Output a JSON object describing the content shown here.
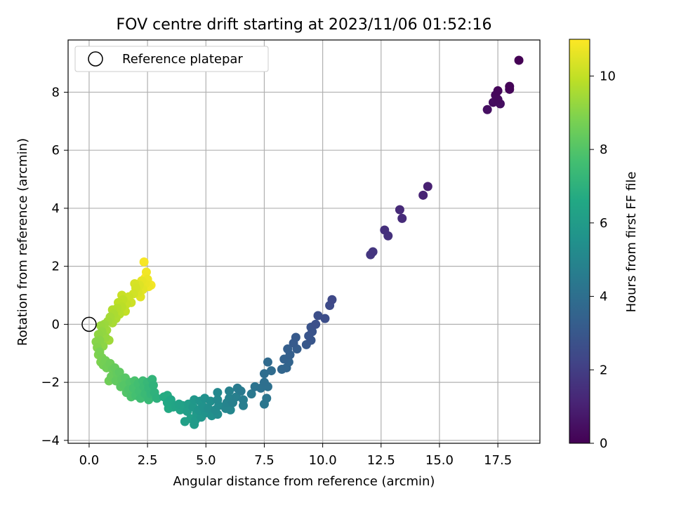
{
  "chart_data": {
    "type": "scatter",
    "title": "FOV centre drift starting at 2023/11/06 01:52:16",
    "xlabel": "Angular distance from reference (arcmin)",
    "ylabel": "Rotation from reference (arcmin)",
    "xlim": [
      -0.9,
      19.3
    ],
    "ylim": [
      -4.1,
      9.8
    ],
    "xticks": [
      0.0,
      2.5,
      5.0,
      7.5,
      10.0,
      12.5,
      15.0,
      17.5
    ],
    "xtick_labels": [
      "0.0",
      "2.5",
      "5.0",
      "7.5",
      "10.0",
      "12.5",
      "15.0",
      "17.5"
    ],
    "yticks": [
      -4,
      -2,
      0,
      2,
      4,
      6,
      8
    ],
    "ytick_labels": [
      "−4",
      "−2",
      "0",
      "2",
      "4",
      "6",
      "8"
    ],
    "grid": true,
    "legend": {
      "position": "top-left",
      "entries": [
        "Reference platepar"
      ]
    },
    "reference_point": {
      "x": 0,
      "y": 0,
      "marker": "open-circle"
    },
    "colorbar": {
      "label": "Hours from first FF file",
      "range": [
        0,
        11
      ],
      "ticks": [
        0,
        2,
        4,
        6,
        8,
        10
      ],
      "tick_labels": [
        "0",
        "2",
        "4",
        "6",
        "8",
        "10"
      ],
      "colormap": "viridis"
    },
    "colors": {
      "reference": "#000000",
      "grid": "#b0b0b0"
    },
    "points": [
      {
        "x": 18.4,
        "y": 9.1,
        "t": 0.0
      },
      {
        "x": 18.0,
        "y": 8.2,
        "t": 0.1
      },
      {
        "x": 18.0,
        "y": 8.1,
        "t": 0.15
      },
      {
        "x": 17.5,
        "y": 8.05,
        "t": 0.2
      },
      {
        "x": 17.4,
        "y": 7.9,
        "t": 0.25
      },
      {
        "x": 17.5,
        "y": 7.75,
        "t": 0.3
      },
      {
        "x": 17.3,
        "y": 7.65,
        "t": 0.35
      },
      {
        "x": 17.6,
        "y": 7.6,
        "t": 0.4
      },
      {
        "x": 17.05,
        "y": 7.4,
        "t": 0.45
      },
      {
        "x": 14.5,
        "y": 4.75,
        "t": 1.0
      },
      {
        "x": 14.3,
        "y": 4.45,
        "t": 1.1
      },
      {
        "x": 13.3,
        "y": 3.95,
        "t": 1.3
      },
      {
        "x": 13.4,
        "y": 3.65,
        "t": 1.35
      },
      {
        "x": 12.65,
        "y": 3.25,
        "t": 1.5
      },
      {
        "x": 12.8,
        "y": 3.05,
        "t": 1.55
      },
      {
        "x": 12.15,
        "y": 2.5,
        "t": 1.7
      },
      {
        "x": 12.05,
        "y": 2.4,
        "t": 1.75
      },
      {
        "x": 10.4,
        "y": 0.85,
        "t": 2.4
      },
      {
        "x": 10.3,
        "y": 0.65,
        "t": 2.5
      },
      {
        "x": 10.1,
        "y": 0.2,
        "t": 2.6
      },
      {
        "x": 9.8,
        "y": 0.3,
        "t": 2.65
      },
      {
        "x": 9.7,
        "y": 0.0,
        "t": 2.7
      },
      {
        "x": 9.5,
        "y": -0.1,
        "t": 2.8
      },
      {
        "x": 9.55,
        "y": -0.25,
        "t": 2.85
      },
      {
        "x": 9.4,
        "y": -0.4,
        "t": 2.9
      },
      {
        "x": 9.5,
        "y": -0.55,
        "t": 2.95
      },
      {
        "x": 9.3,
        "y": -0.7,
        "t": 3.0
      },
      {
        "x": 8.85,
        "y": -0.45,
        "t": 3.1
      },
      {
        "x": 8.75,
        "y": -0.65,
        "t": 3.15
      },
      {
        "x": 8.9,
        "y": -0.85,
        "t": 3.2
      },
      {
        "x": 8.5,
        "y": -0.85,
        "t": 3.3
      },
      {
        "x": 8.6,
        "y": -1.05,
        "t": 3.35
      },
      {
        "x": 8.35,
        "y": -1.2,
        "t": 3.45
      },
      {
        "x": 8.55,
        "y": -1.3,
        "t": 3.5
      },
      {
        "x": 8.45,
        "y": -1.5,
        "t": 3.55
      },
      {
        "x": 8.25,
        "y": -1.55,
        "t": 3.6
      },
      {
        "x": 7.65,
        "y": -1.3,
        "t": 3.8
      },
      {
        "x": 7.8,
        "y": -1.6,
        "t": 3.85
      },
      {
        "x": 7.5,
        "y": -1.7,
        "t": 3.9
      },
      {
        "x": 7.5,
        "y": -2.0,
        "t": 4.0
      },
      {
        "x": 7.65,
        "y": -2.15,
        "t": 4.05
      },
      {
        "x": 7.35,
        "y": -2.2,
        "t": 4.1
      },
      {
        "x": 7.1,
        "y": -2.15,
        "t": 4.2
      },
      {
        "x": 7.6,
        "y": -2.55,
        "t": 4.25
      },
      {
        "x": 7.5,
        "y": -2.75,
        "t": 4.3
      },
      {
        "x": 6.95,
        "y": -2.4,
        "t": 4.4
      },
      {
        "x": 6.5,
        "y": -2.3,
        "t": 4.5
      },
      {
        "x": 6.35,
        "y": -2.2,
        "t": 4.55
      },
      {
        "x": 6.6,
        "y": -2.6,
        "t": 4.6
      },
      {
        "x": 6.6,
        "y": -2.8,
        "t": 4.65
      },
      {
        "x": 6.3,
        "y": -2.5,
        "t": 4.7
      },
      {
        "x": 6.15,
        "y": -2.7,
        "t": 4.75
      },
      {
        "x": 6.0,
        "y": -2.3,
        "t": 4.8
      },
      {
        "x": 6.0,
        "y": -2.55,
        "t": 4.85
      },
      {
        "x": 5.9,
        "y": -2.7,
        "t": 4.9
      },
      {
        "x": 5.85,
        "y": -2.9,
        "t": 4.95
      },
      {
        "x": 6.05,
        "y": -2.95,
        "t": 5.0
      },
      {
        "x": 5.5,
        "y": -2.35,
        "t": 5.1
      },
      {
        "x": 5.5,
        "y": -2.6,
        "t": 5.15
      },
      {
        "x": 5.55,
        "y": -2.8,
        "t": 5.2
      },
      {
        "x": 5.4,
        "y": -2.95,
        "t": 5.25
      },
      {
        "x": 5.5,
        "y": -3.1,
        "t": 5.3
      },
      {
        "x": 5.2,
        "y": -2.65,
        "t": 5.35
      },
      {
        "x": 5.1,
        "y": -2.9,
        "t": 5.4
      },
      {
        "x": 5.25,
        "y": -3.15,
        "t": 5.45
      },
      {
        "x": 4.95,
        "y": -2.55,
        "t": 5.5
      },
      {
        "x": 4.9,
        "y": -2.85,
        "t": 5.55
      },
      {
        "x": 5.0,
        "y": -3.05,
        "t": 5.6
      },
      {
        "x": 4.75,
        "y": -2.65,
        "t": 5.65
      },
      {
        "x": 4.7,
        "y": -2.95,
        "t": 5.7
      },
      {
        "x": 4.8,
        "y": -3.2,
        "t": 5.75
      },
      {
        "x": 4.5,
        "y": -2.6,
        "t": 5.8
      },
      {
        "x": 4.45,
        "y": -2.85,
        "t": 5.85
      },
      {
        "x": 4.6,
        "y": -3.05,
        "t": 5.9
      },
      {
        "x": 4.55,
        "y": -3.3,
        "t": 5.95
      },
      {
        "x": 4.5,
        "y": -3.45,
        "t": 6.0
      },
      {
        "x": 4.25,
        "y": -2.75,
        "t": 6.05
      },
      {
        "x": 4.2,
        "y": -3.0,
        "t": 6.1
      },
      {
        "x": 4.35,
        "y": -3.25,
        "t": 6.15
      },
      {
        "x": 4.1,
        "y": -3.35,
        "t": 6.2
      },
      {
        "x": 4.0,
        "y": -2.8,
        "t": 6.25
      },
      {
        "x": 3.85,
        "y": -2.75,
        "t": 6.3
      },
      {
        "x": 3.9,
        "y": -2.95,
        "t": 6.35
      },
      {
        "x": 3.7,
        "y": -2.8,
        "t": 6.4
      },
      {
        "x": 3.5,
        "y": -2.6,
        "t": 6.5
      },
      {
        "x": 3.6,
        "y": -2.85,
        "t": 6.55
      },
      {
        "x": 3.35,
        "y": -2.7,
        "t": 6.6
      },
      {
        "x": 3.4,
        "y": -2.9,
        "t": 6.65
      },
      {
        "x": 3.2,
        "y": -2.5,
        "t": 6.7
      },
      {
        "x": 3.35,
        "y": -2.45,
        "t": 6.72
      },
      {
        "x": 2.9,
        "y": -2.55,
        "t": 7.0
      },
      {
        "x": 2.8,
        "y": -2.35,
        "t": 7.05
      },
      {
        "x": 2.75,
        "y": -2.1,
        "t": 7.1
      },
      {
        "x": 2.7,
        "y": -1.9,
        "t": 7.15
      },
      {
        "x": 2.65,
        "y": -2.4,
        "t": 7.2
      },
      {
        "x": 2.55,
        "y": -2.2,
        "t": 7.25
      },
      {
        "x": 2.5,
        "y": -2.0,
        "t": 7.3
      },
      {
        "x": 2.55,
        "y": -2.6,
        "t": 7.35
      },
      {
        "x": 2.4,
        "y": -2.4,
        "t": 7.4
      },
      {
        "x": 2.35,
        "y": -2.15,
        "t": 7.45
      },
      {
        "x": 2.3,
        "y": -1.95,
        "t": 7.5
      },
      {
        "x": 2.2,
        "y": -2.55,
        "t": 7.55
      },
      {
        "x": 2.15,
        "y": -2.3,
        "t": 7.6
      },
      {
        "x": 2.1,
        "y": -2.05,
        "t": 7.65
      },
      {
        "x": 2.0,
        "y": -2.45,
        "t": 7.7
      },
      {
        "x": 1.9,
        "y": -2.2,
        "t": 7.75
      },
      {
        "x": 1.95,
        "y": -1.95,
        "t": 7.8
      },
      {
        "x": 1.8,
        "y": -2.5,
        "t": 7.85
      },
      {
        "x": 1.7,
        "y": -2.25,
        "t": 7.9
      },
      {
        "x": 1.75,
        "y": -2.0,
        "t": 7.95
      },
      {
        "x": 1.6,
        "y": -2.35,
        "t": 8.0
      },
      {
        "x": 1.5,
        "y": -2.1,
        "t": 8.05
      },
      {
        "x": 1.55,
        "y": -1.85,
        "t": 8.1
      },
      {
        "x": 1.35,
        "y": -2.15,
        "t": 8.15
      },
      {
        "x": 1.4,
        "y": -1.9,
        "t": 8.2
      },
      {
        "x": 1.3,
        "y": -1.65,
        "t": 8.25
      },
      {
        "x": 1.15,
        "y": -1.95,
        "t": 8.3
      },
      {
        "x": 1.2,
        "y": -1.7,
        "t": 8.35
      },
      {
        "x": 1.1,
        "y": -1.5,
        "t": 8.4
      },
      {
        "x": 0.95,
        "y": -1.8,
        "t": 8.45
      },
      {
        "x": 1.0,
        "y": -1.55,
        "t": 8.5
      },
      {
        "x": 0.9,
        "y": -1.35,
        "t": 8.55
      },
      {
        "x": 0.85,
        "y": -1.95,
        "t": 8.58
      },
      {
        "x": 0.75,
        "y": -1.5,
        "t": 8.6
      },
      {
        "x": 0.7,
        "y": -1.25,
        "t": 8.65
      },
      {
        "x": 0.6,
        "y": -1.4,
        "t": 8.7
      },
      {
        "x": 0.55,
        "y": -1.15,
        "t": 8.75
      },
      {
        "x": 0.45,
        "y": -0.95,
        "t": 8.8
      },
      {
        "x": 0.5,
        "y": -1.3,
        "t": 8.85
      },
      {
        "x": 0.4,
        "y": -1.05,
        "t": 8.9
      },
      {
        "x": 0.35,
        "y": -0.8,
        "t": 8.95
      },
      {
        "x": 0.3,
        "y": -0.6,
        "t": 9.0
      },
      {
        "x": 0.45,
        "y": -0.55,
        "t": 9.05
      },
      {
        "x": 0.6,
        "y": -0.75,
        "t": 9.1
      },
      {
        "x": 0.4,
        "y": -0.35,
        "t": 9.15
      },
      {
        "x": 0.55,
        "y": -0.25,
        "t": 9.2
      },
      {
        "x": 0.7,
        "y": -0.45,
        "t": 9.25
      },
      {
        "x": 0.5,
        "y": -0.05,
        "t": 9.3
      },
      {
        "x": 0.65,
        "y": 0.0,
        "t": 9.35
      },
      {
        "x": 0.75,
        "y": -0.2,
        "t": 9.4
      },
      {
        "x": 0.85,
        "y": -0.55,
        "t": 9.42
      },
      {
        "x": 0.8,
        "y": 0.1,
        "t": 9.45
      },
      {
        "x": 0.9,
        "y": 0.25,
        "t": 9.5
      },
      {
        "x": 1.0,
        "y": 0.05,
        "t": 9.55
      },
      {
        "x": 1.05,
        "y": 0.35,
        "t": 9.6
      },
      {
        "x": 1.15,
        "y": 0.2,
        "t": 9.65
      },
      {
        "x": 1.0,
        "y": 0.5,
        "t": 9.7
      },
      {
        "x": 1.2,
        "y": 0.55,
        "t": 9.75
      },
      {
        "x": 1.3,
        "y": 0.35,
        "t": 9.8
      },
      {
        "x": 1.4,
        "y": 0.6,
        "t": 9.85
      },
      {
        "x": 1.25,
        "y": 0.75,
        "t": 9.9
      },
      {
        "x": 1.45,
        "y": 0.85,
        "t": 9.95
      },
      {
        "x": 1.55,
        "y": 0.45,
        "t": 10.0
      },
      {
        "x": 1.6,
        "y": 0.7,
        "t": 10.05
      },
      {
        "x": 1.4,
        "y": 1.0,
        "t": 10.1
      },
      {
        "x": 1.7,
        "y": 0.95,
        "t": 10.15
      },
      {
        "x": 1.8,
        "y": 0.75,
        "t": 10.2
      },
      {
        "x": 1.9,
        "y": 1.05,
        "t": 10.25
      },
      {
        "x": 2.0,
        "y": 1.25,
        "t": 10.3
      },
      {
        "x": 1.95,
        "y": 1.4,
        "t": 10.35
      },
      {
        "x": 2.1,
        "y": 1.1,
        "t": 10.4
      },
      {
        "x": 2.15,
        "y": 1.35,
        "t": 10.45
      },
      {
        "x": 2.2,
        "y": 0.95,
        "t": 10.5
      },
      {
        "x": 2.3,
        "y": 1.2,
        "t": 10.55
      },
      {
        "x": 2.25,
        "y": 1.5,
        "t": 10.6
      },
      {
        "x": 2.4,
        "y": 1.4,
        "t": 10.65
      },
      {
        "x": 2.5,
        "y": 1.55,
        "t": 10.7
      },
      {
        "x": 2.55,
        "y": 1.3,
        "t": 10.75
      },
      {
        "x": 2.45,
        "y": 1.8,
        "t": 10.8
      },
      {
        "x": 2.35,
        "y": 2.15,
        "t": 10.9
      },
      {
        "x": 2.65,
        "y": 1.35,
        "t": 10.85
      },
      {
        "x": 2.4,
        "y": 1.6,
        "t": 10.95
      }
    ]
  }
}
